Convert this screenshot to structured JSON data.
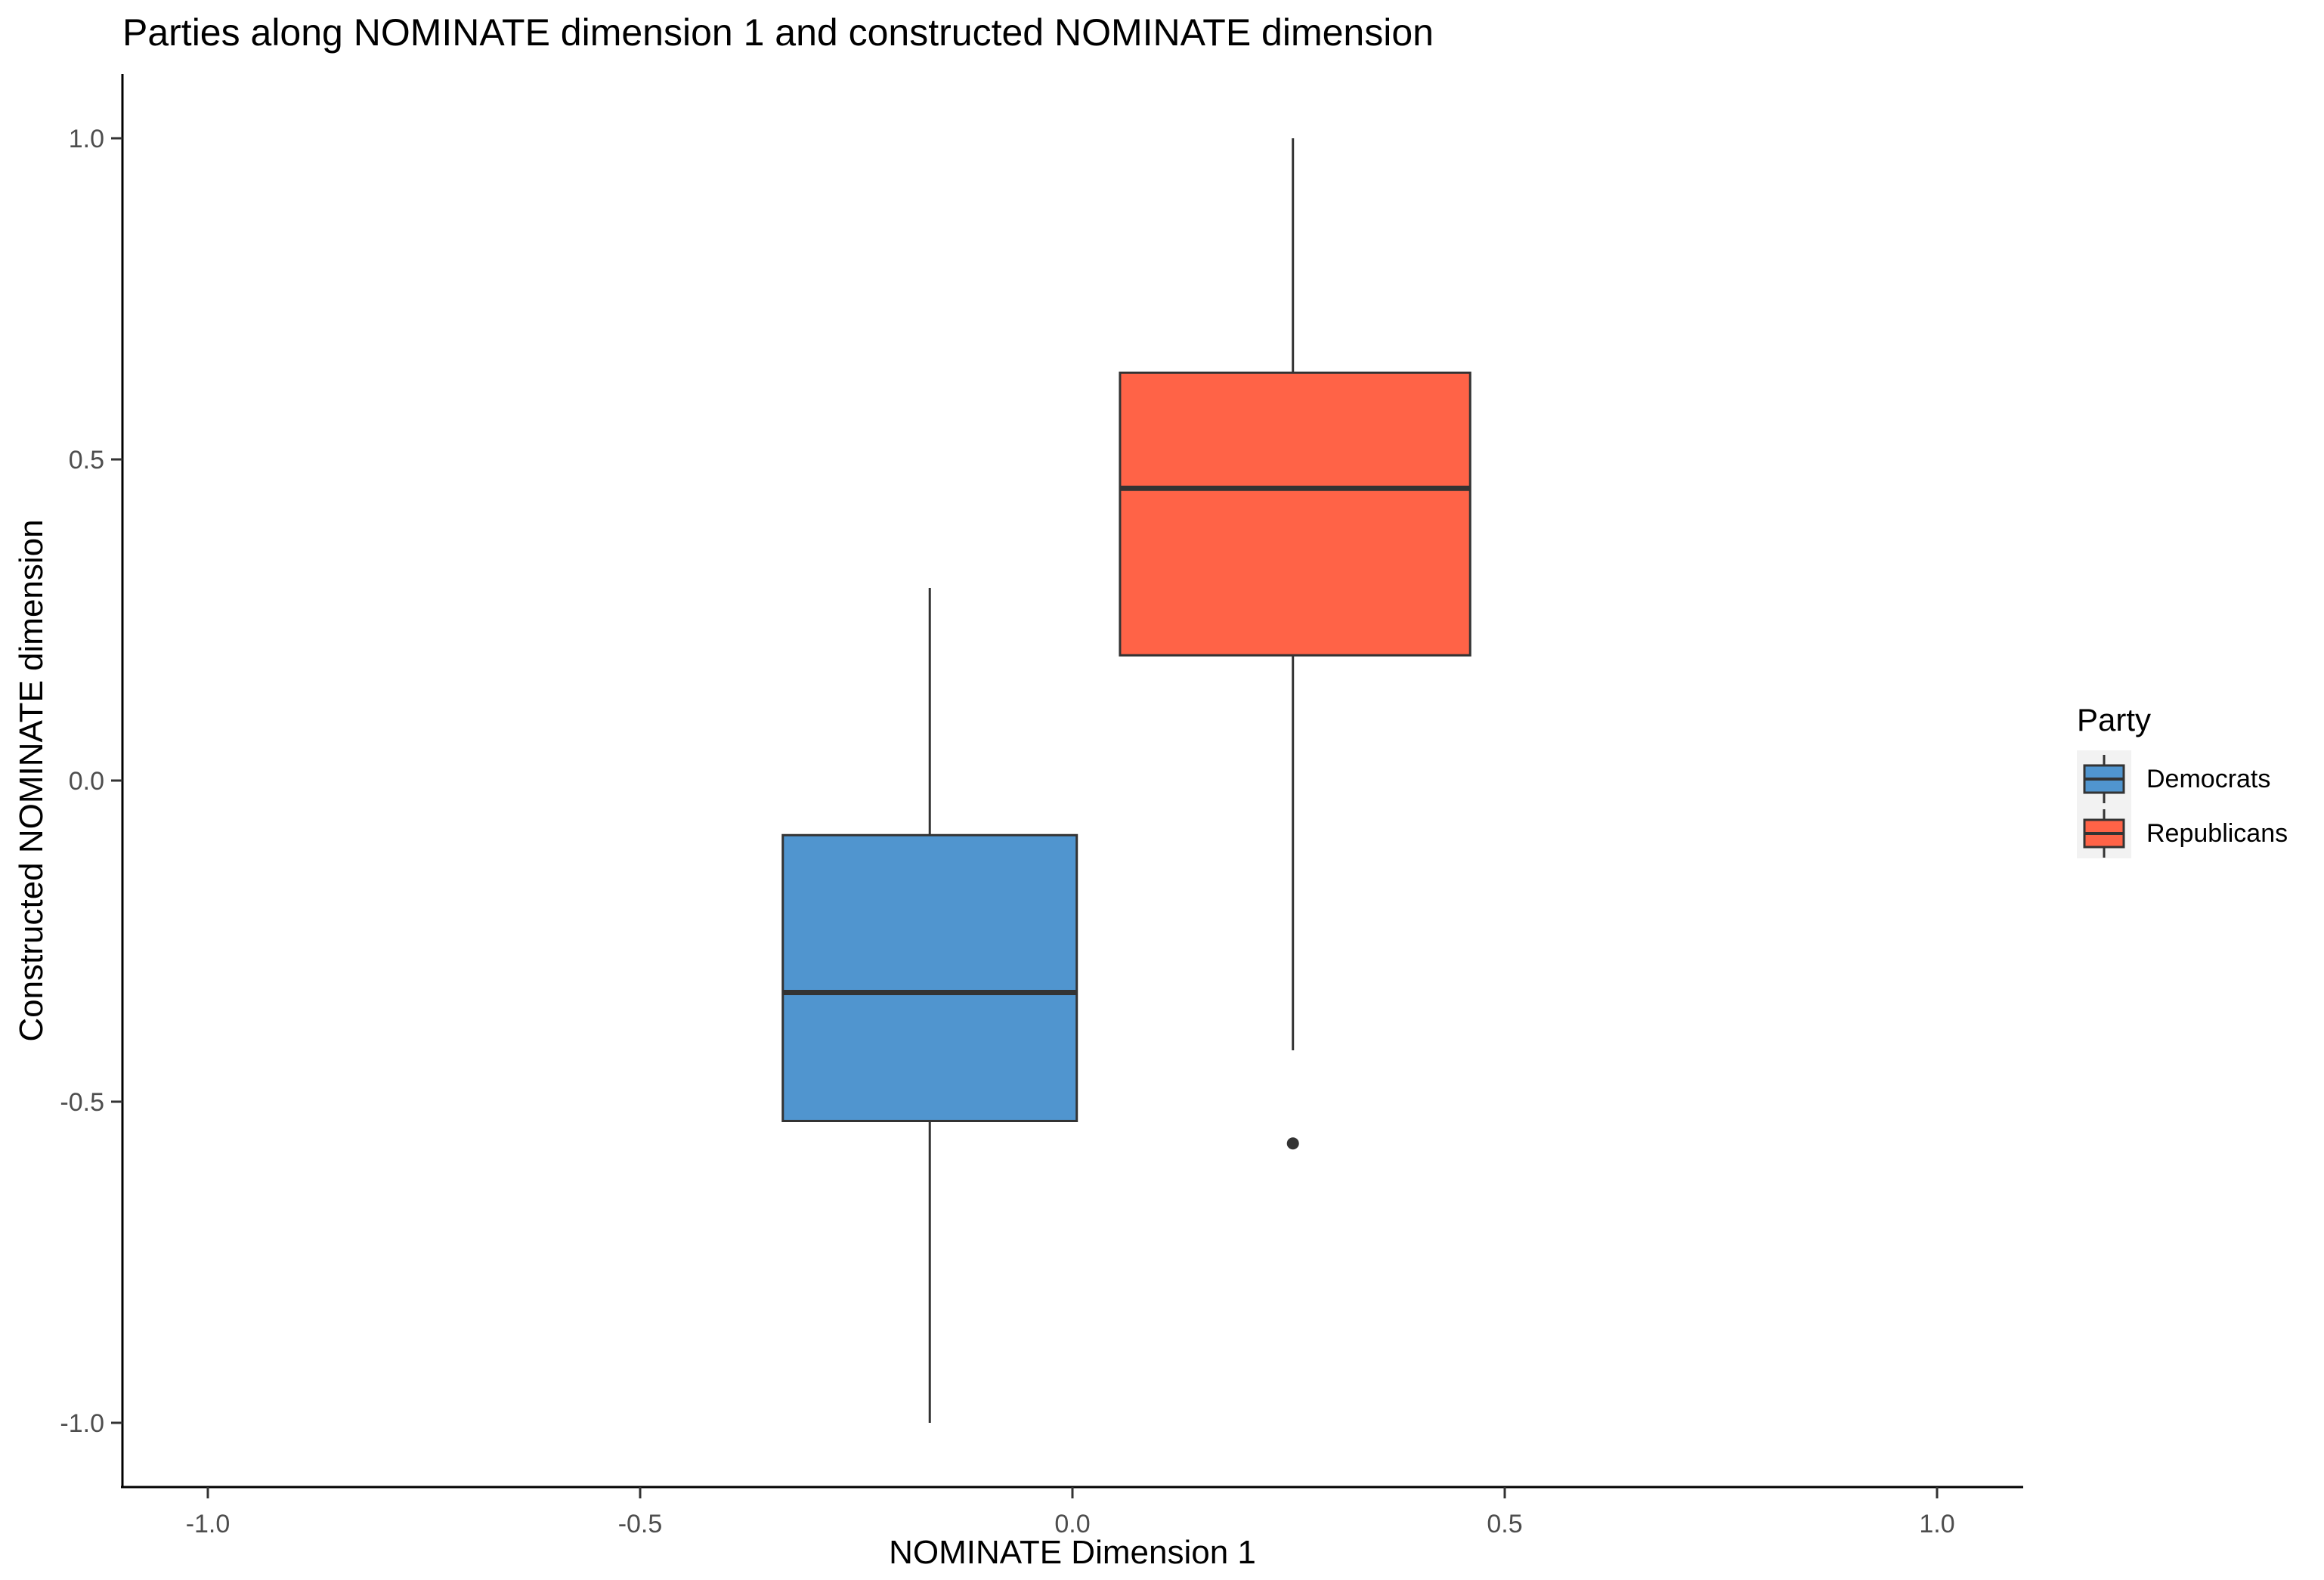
{
  "chart_data": {
    "type": "boxplot",
    "title": "Parties along NOMINATE dimension 1 and constructed NOMINATE dimension",
    "xlabel": "NOMINATE Dimension 1",
    "ylabel": "Constructed NOMINATE dimension",
    "xlim": [
      -1.1,
      1.1
    ],
    "ylim": [
      -1.1,
      1.1
    ],
    "x_ticks": [
      -1.0,
      -0.5,
      0.0,
      0.5,
      1.0
    ],
    "x_tick_labels": [
      "-1.0",
      "-0.5",
      "0.0",
      "0.5",
      "1.0"
    ],
    "y_ticks": [
      -1.0,
      -0.5,
      0.0,
      0.5,
      1.0
    ],
    "y_tick_labels": [
      "-1.0",
      "-0.5",
      "0.0",
      "0.5",
      "1.0"
    ],
    "grid": false,
    "legend": {
      "title": "Party",
      "position": "right"
    },
    "series": [
      {
        "name": "Democrats",
        "color": "#5095cf",
        "x_center": -0.165,
        "x_left": -0.335,
        "x_right": 0.005,
        "whisker_low": -1.0,
        "q1": -0.53,
        "median": -0.33,
        "q3": -0.085,
        "whisker_high": 0.3,
        "outliers": []
      },
      {
        "name": "Republicans",
        "color": "#ff6347",
        "x_center": 0.255,
        "x_left": 0.055,
        "x_right": 0.46,
        "whisker_low": -0.42,
        "q1": 0.195,
        "median": 0.455,
        "q3": 0.635,
        "whisker_high": 1.0,
        "outliers": [
          -0.565
        ]
      }
    ]
  }
}
